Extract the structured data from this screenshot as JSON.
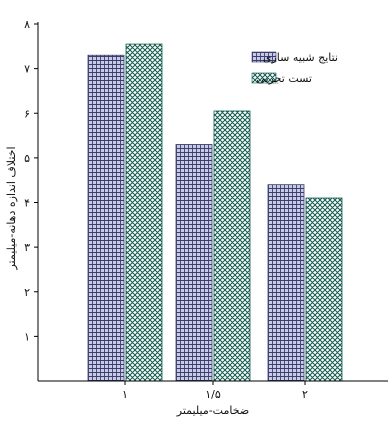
{
  "colors": {
    "sim_fill": "#c9cbe6",
    "sim_grid": "#3a3f6e",
    "exp_fill": "#ffffff",
    "exp_hatch": "#0f5a4e",
    "axis": "#000000"
  },
  "chart_data": {
    "type": "bar",
    "categories": [
      "۱",
      "۱/۵",
      "۲"
    ],
    "series": [
      {
        "name": "نتایج شبیه سازی",
        "values": [
          7.3,
          5.3,
          4.4
        ]
      },
      {
        "name": "تست تجربی",
        "values": [
          7.55,
          6.05,
          4.1
        ]
      }
    ],
    "xlabel": "ضخامت-میلیمتر",
    "ylabel": "اختلاف اندازه دهانه-میلیمتر",
    "ylim": [
      0,
      8
    ],
    "yticks": [
      {
        "value": 1,
        "label": "۱"
      },
      {
        "value": 2,
        "label": "۲"
      },
      {
        "value": 3,
        "label": "۳"
      },
      {
        "value": 4,
        "label": "۴"
      },
      {
        "value": 5,
        "label": "۵"
      },
      {
        "value": 6,
        "label": "۶"
      },
      {
        "value": 7,
        "label": "۷"
      },
      {
        "value": 8,
        "label": "۸"
      }
    ],
    "legend_position": "top-right",
    "grid": false
  }
}
